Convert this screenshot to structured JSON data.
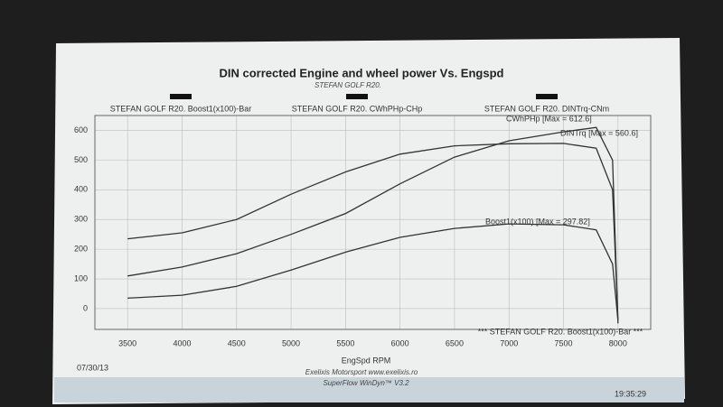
{
  "chart_data": {
    "type": "line",
    "title": "DIN corrected Engine and wheel power Vs. Engspd",
    "subtitle": "STEFAN GOLF R20.",
    "x_label": "EngSpd RPM",
    "x": [
      3500,
      4000,
      4500,
      5000,
      5500,
      6000,
      6500,
      7000,
      7500,
      7800,
      7950,
      8000
    ],
    "series": [
      {
        "name": "STEFAN GOLF R20. Boost1(x100)-Bar",
        "color": "#333333",
        "values": [
          35,
          45,
          75,
          130,
          190,
          240,
          270,
          285,
          282,
          265,
          150,
          -40
        ]
      },
      {
        "name": "STEFAN GOLF R20. CWhPHp-CHp",
        "color": "#333333",
        "values": [
          110,
          140,
          185,
          250,
          320,
          420,
          510,
          565,
          595,
          610,
          500,
          -50
        ]
      },
      {
        "name": "STEFAN GOLF R20. DINTrq-CNm",
        "color": "#333333",
        "values": [
          235,
          255,
          300,
          385,
          460,
          520,
          548,
          555,
          556,
          540,
          400,
          -40
        ]
      }
    ],
    "annotations": [
      "CWhPHp [Max = 612.6]",
      "DINTrq [Max = 560.6]",
      "Boost1(x100) [Max = 297.82]",
      "*** STEFAN GOLF R20. Boost1(x100)-Bar ***"
    ],
    "footer": [
      "Exelixis Motorsport www.exelixis.ro",
      "SuperFlow WinDyn™ V3.2"
    ],
    "date": "07/30/13",
    "time": "19:35:29",
    "xlim": [
      3200,
      8300
    ],
    "xticks": [
      3500,
      4000,
      4500,
      5000,
      5500,
      6000,
      6500,
      7000,
      7500,
      8000
    ],
    "ylim": [
      -70,
      650
    ],
    "yticks": [
      0,
      100,
      200,
      300,
      400,
      500,
      600
    ],
    "grid": true
  }
}
